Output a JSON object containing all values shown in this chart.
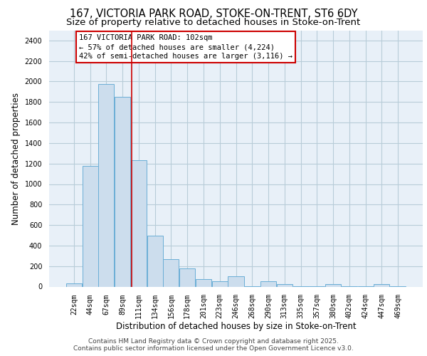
{
  "title_line1": "167, VICTORIA PARK ROAD, STOKE-ON-TRENT, ST6 6DY",
  "title_line2": "Size of property relative to detached houses in Stoke-on-Trent",
  "xlabel": "Distribution of detached houses by size in Stoke-on-Trent",
  "ylabel": "Number of detached properties",
  "bin_labels": [
    "22sqm",
    "44sqm",
    "67sqm",
    "89sqm",
    "111sqm",
    "134sqm",
    "156sqm",
    "178sqm",
    "201sqm",
    "223sqm",
    "246sqm",
    "268sqm",
    "290sqm",
    "313sqm",
    "335sqm",
    "357sqm",
    "380sqm",
    "402sqm",
    "424sqm",
    "447sqm",
    "469sqm"
  ],
  "bar_values": [
    30,
    1175,
    1975,
    1850,
    1230,
    500,
    270,
    175,
    75,
    50,
    100,
    5,
    50,
    25,
    5,
    5,
    25,
    5,
    5,
    25,
    5
  ],
  "bar_color": "#ccdded",
  "bar_edge_color": "#6aaed6",
  "vline_x": 3.58,
  "vline_color": "#cc0000",
  "annotation_text": "167 VICTORIA PARK ROAD: 102sqm\n← 57% of detached houses are smaller (4,224)\n42% of semi-detached houses are larger (3,116) →",
  "annotation_box_color": "white",
  "annotation_box_edge_color": "#cc0000",
  "ylim": [
    0,
    2500
  ],
  "yticks": [
    0,
    200,
    400,
    600,
    800,
    1000,
    1200,
    1400,
    1600,
    1800,
    2000,
    2200,
    2400
  ],
  "grid_color": "#b8ccd8",
  "background_color": "#e8f0f8",
  "footer_line1": "Contains HM Land Registry data © Crown copyright and database right 2025.",
  "footer_line2": "Contains public sector information licensed under the Open Government Licence v3.0.",
  "title_fontsize": 10.5,
  "subtitle_fontsize": 9.5,
  "axis_label_fontsize": 8.5,
  "tick_fontsize": 7,
  "annotation_fontsize": 7.5,
  "footer_fontsize": 6.5
}
